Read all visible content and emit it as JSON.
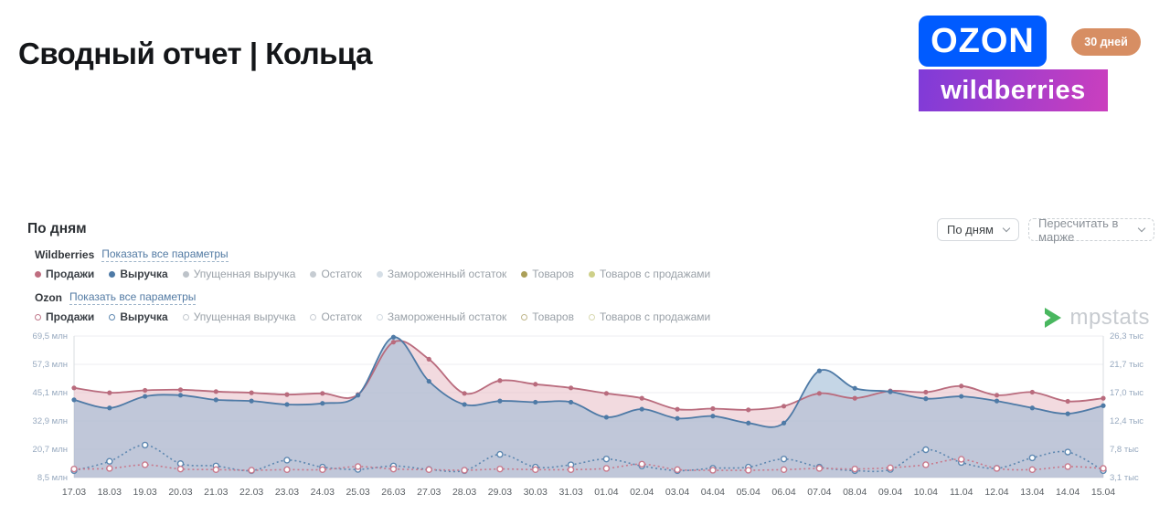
{
  "title": "Сводный отчет | Кольца",
  "header": {
    "ozon_logo": "OZON",
    "wildberries_logo": "wildberries",
    "period_badge": "30 дней"
  },
  "section": {
    "title": "По дням",
    "interval_label": "По дням",
    "recalc_label": "Пересчитать в марже"
  },
  "watermark": {
    "text": "mpstats"
  },
  "legend": {
    "groups": [
      {
        "name": "Wildberries",
        "show_all": "Показать все параметры",
        "marker": "filled",
        "items": [
          {
            "label": "Продажи",
            "color": "#bf6e80",
            "active": true
          },
          {
            "label": "Выручка",
            "color": "#4e7aa6",
            "active": true
          },
          {
            "label": "Упущенная выручка",
            "color": "#bdc3c9",
            "active": false
          },
          {
            "label": "Остаток",
            "color": "#c6ccd2",
            "active": false
          },
          {
            "label": "Замороженный остаток",
            "color": "#d5dee6",
            "active": false
          },
          {
            "label": "Товаров",
            "color": "#ab9f58",
            "active": false
          },
          {
            "label": "Товаров с продажами",
            "color": "#ced089",
            "active": false
          }
        ]
      },
      {
        "name": "Ozon",
        "show_all": "Показать все параметры",
        "marker": "hollow",
        "items": [
          {
            "label": "Продажи",
            "color": "#c0798b",
            "active": true
          },
          {
            "label": "Выручка",
            "color": "#5d87b0",
            "active": true
          },
          {
            "label": "Упущенная выручка",
            "color": "#c3c9cf",
            "active": false
          },
          {
            "label": "Остаток",
            "color": "#c8cdd3",
            "active": false
          },
          {
            "label": "Замороженный остаток",
            "color": "#d4dce3",
            "active": false
          },
          {
            "label": "Товаров",
            "color": "#bfb68a",
            "active": false
          },
          {
            "label": "Товаров с продажами",
            "color": "#d8d9b0",
            "active": false
          }
        ]
      }
    ]
  },
  "chart_data": {
    "type": "line",
    "title": "По дням",
    "grid": true,
    "x_dates": [
      "17.03",
      "18.03",
      "19.03",
      "20.03",
      "21.03",
      "22.03",
      "23.03",
      "24.03",
      "25.03",
      "26.03",
      "27.03",
      "28.03",
      "29.03",
      "30.03",
      "31.03",
      "01.04",
      "02.04",
      "03.04",
      "04.04",
      "05.04",
      "06.04",
      "07.04",
      "08.04",
      "09.04",
      "10.04",
      "11.04",
      "12.04",
      "13.04",
      "14.04",
      "15.04"
    ],
    "left_axis": {
      "unit": "млн",
      "min": 8.5,
      "max": 69.5,
      "ticks": [
        "69,5 млн",
        "57,3 млн",
        "45,1 млн",
        "32,9 млн",
        "20,7 млн",
        "8,5 млн"
      ]
    },
    "right_axis": {
      "unit": "тыс",
      "min": 3.1,
      "max": 26.3,
      "ticks": [
        "26,3 тыс",
        "21,7 тыс",
        "17,0 тыс",
        "12,4 тыс",
        "7,8 тыс",
        "3,1 тыс"
      ]
    },
    "series": [
      {
        "name": "Wildberries Продажи",
        "axis": "right",
        "line": "solid",
        "marker": "filled",
        "color": "#b96b7d",
        "fill": "rgba(231,188,197,0.55)",
        "values": [
          17.8,
          17.0,
          17.4,
          17.5,
          17.2,
          17.0,
          16.7,
          16.9,
          16.7,
          25.3,
          22.5,
          16.9,
          19.0,
          18.4,
          17.8,
          16.9,
          16.1,
          14.3,
          14.4,
          14.2,
          14.8,
          16.9,
          16.1,
          17.3,
          17.1,
          18.1,
          16.6,
          17.1,
          15.6,
          16.1
        ]
      },
      {
        "name": "Wildberries Выручка",
        "axis": "left",
        "line": "solid",
        "marker": "filled",
        "color": "#4e7aa6",
        "fill": "rgba(158,186,214,0.6)",
        "values": [
          42,
          38.5,
          43.5,
          44,
          42,
          41.5,
          40,
          40.5,
          44,
          69,
          50,
          40,
          41.5,
          41,
          41,
          34.5,
          38,
          34,
          35,
          32,
          32,
          54.5,
          47,
          45.5,
          42.5,
          43.5,
          41.5,
          38.5,
          36,
          39.5
        ]
      },
      {
        "name": "Ozon Выручка",
        "axis": "left",
        "line": "dashed",
        "marker": "hollow",
        "color": "#5d87b0",
        "values": [
          11.5,
          15.5,
          22.5,
          14.5,
          13.5,
          11.5,
          16,
          13,
          12,
          13.5,
          12,
          11.5,
          18.5,
          13,
          14,
          16.5,
          13.5,
          11.5,
          12.5,
          13,
          16.5,
          13,
          11.5,
          12,
          20.5,
          15,
          12.5,
          17,
          19.5,
          11.5
        ]
      },
      {
        "name": "Ozon Продажи",
        "axis": "right",
        "line": "dashed",
        "marker": "hollow",
        "color": "#c8798c",
        "values": [
          4.5,
          4.6,
          5.2,
          4.5,
          4.4,
          4.3,
          4.4,
          4.4,
          4.9,
          4.5,
          4.4,
          4.3,
          4.5,
          4.4,
          4.4,
          4.6,
          5.3,
          4.4,
          4.3,
          4.3,
          4.4,
          4.6,
          4.5,
          4.7,
          5.2,
          6.1,
          4.6,
          4.4,
          4.9,
          4.6
        ]
      }
    ]
  }
}
